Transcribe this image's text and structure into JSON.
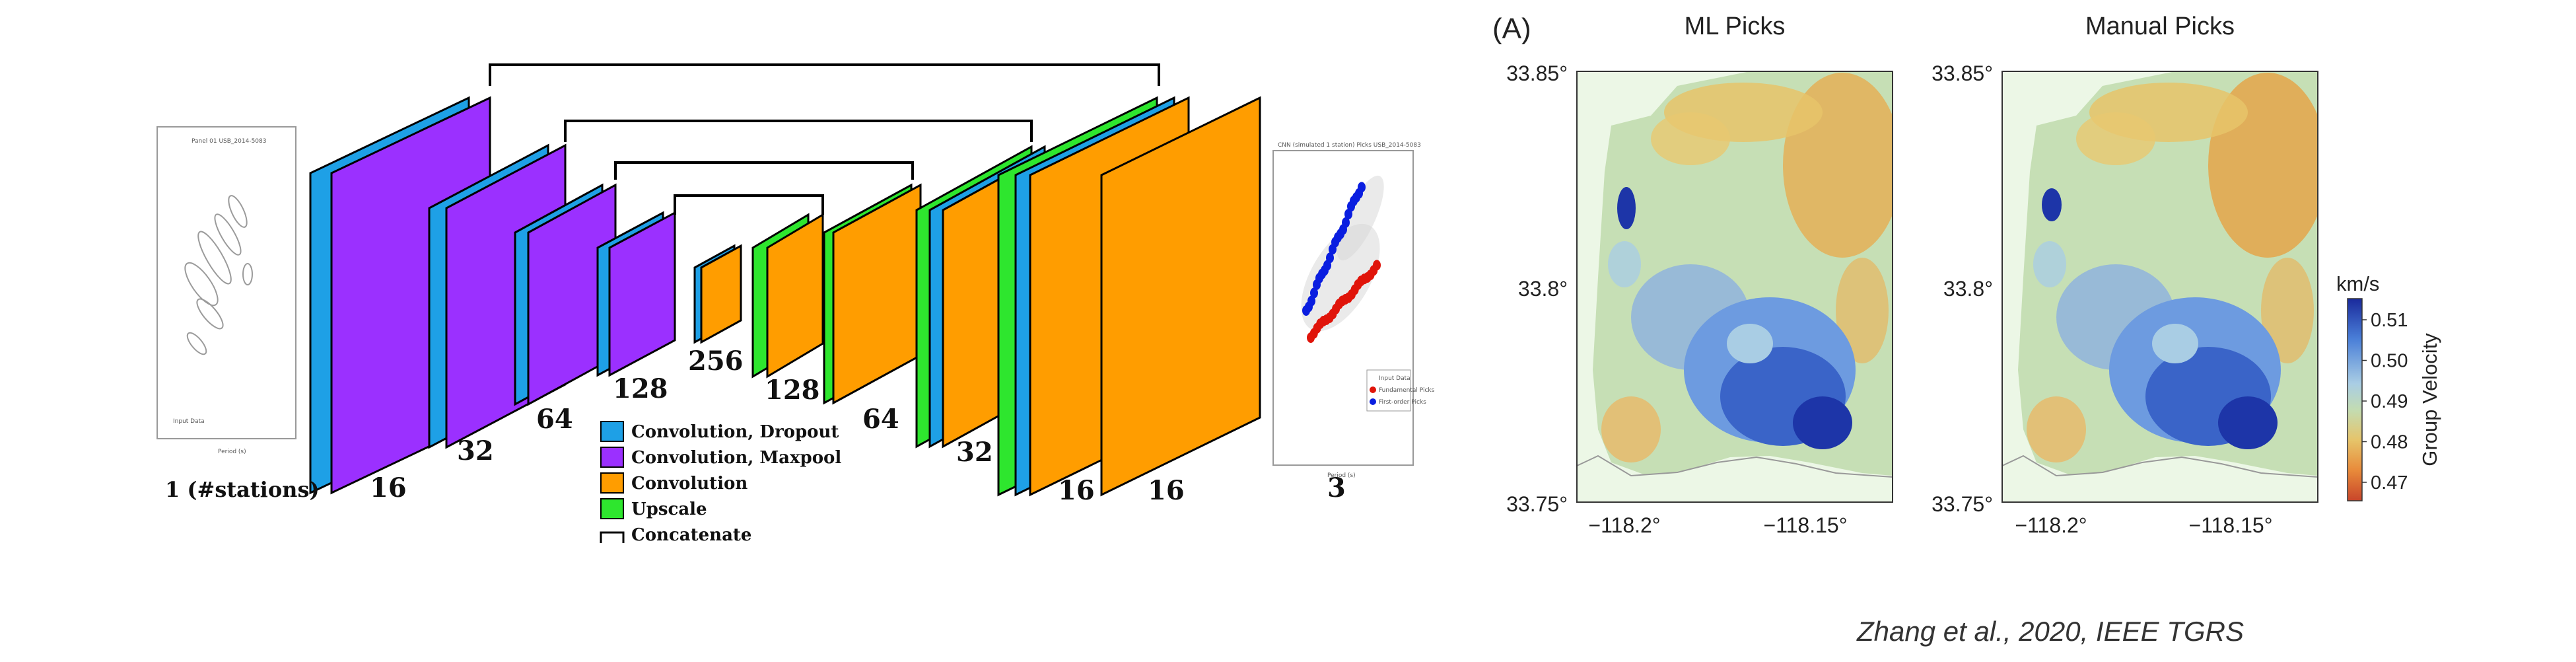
{
  "unet": {
    "layer_counts": {
      "input": "1 (#stations)",
      "enc1": "16",
      "enc2": "32",
      "enc3": "64",
      "enc4": "128",
      "bottleneck": "256",
      "dec4": "128",
      "dec3": "64",
      "dec2": "32",
      "dec1a": "16",
      "dec1b": "16",
      "output": "3"
    },
    "legend": [
      {
        "label": "Convolution, Dropout",
        "color": "#1ea0e6"
      },
      {
        "label": "Convolution, Maxpool",
        "color": "#9b30ff"
      },
      {
        "label": "Convolution",
        "color": "#ff9d00"
      },
      {
        "label": "Upscale",
        "color": "#2ee62e"
      },
      {
        "label": "Concatenate",
        "color": "#000000"
      }
    ],
    "input_plot": {
      "title": "Panel 01 USB_2014-5083",
      "legend_text": "Input Data",
      "xlabel": "Period (s)"
    },
    "output_plot": {
      "title": "CNN (simulated 1 station) Picks USB_2014-5083",
      "legend": [
        "Input Data",
        "Fundamental Picks",
        "First-order Picks"
      ],
      "xlabel": "Period (s)"
    }
  },
  "maps": {
    "panel_label": "(A)",
    "titles": [
      "ML Picks",
      "Manual Picks"
    ],
    "y_ticks": [
      "33.85°",
      "33.8°",
      "33.75°"
    ],
    "x_ticks": [
      "−118.2°",
      "−118.15°"
    ],
    "colorbar": {
      "unit": "km/s",
      "title": "Group Velocity",
      "ticks": [
        "0.51",
        "0.50",
        "0.49",
        "0.48",
        "0.47"
      ]
    }
  },
  "citation": "Zhang et al., 2020, IEEE TGRS"
}
